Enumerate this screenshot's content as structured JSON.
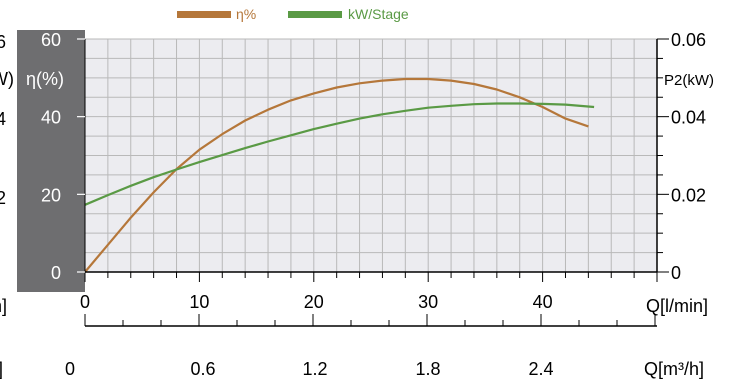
{
  "colors": {
    "efficiency": "#b5773a",
    "power": "#5a9a45",
    "grid": "#b9b9b9",
    "plot_bg": "#ececf0",
    "side_bar": "#6e6e70"
  },
  "chart_data": {
    "type": "line",
    "legend": {
      "placement": "top-center",
      "items": [
        {
          "label": "η%",
          "color": "#b5773a"
        },
        {
          "label": "kW/Stage",
          "color": "#5a9a45"
        }
      ]
    },
    "x_axis": {
      "label": "Q[l/min]",
      "range": [
        0,
        50
      ],
      "ticks": [
        0,
        10,
        20,
        30,
        40
      ],
      "tick_labels": [
        "0",
        "10",
        "20",
        "30",
        "40"
      ]
    },
    "x_axis_secondary": {
      "label": "Q[m³/h]",
      "tick_labels": [
        "0",
        "0.6",
        "1.2",
        "1.8",
        "2.4"
      ]
    },
    "y_axis_left": {
      "label": "η(%)",
      "range": [
        0,
        60
      ],
      "ticks": [
        0,
        20,
        40,
        60
      ],
      "tick_labels": [
        "0",
        "20",
        "40",
        "60"
      ]
    },
    "y_axis_right": {
      "label": "P2(kW)",
      "range": [
        0,
        0.06
      ],
      "ticks": [
        0,
        0.02,
        0.04,
        0.06
      ],
      "tick_labels": [
        "0",
        "0.02",
        "0.04",
        "0.06"
      ]
    },
    "clipped_left_text": {
      "ticks": [
        "6",
        "4",
        "2"
      ],
      "label_fragment": "kW)",
      "bottom_fragments": [
        "n]",
        "]"
      ]
    },
    "grid": true,
    "series": [
      {
        "name": "η%",
        "axis": "left",
        "x": [
          0,
          2,
          4,
          6,
          8,
          10,
          12,
          14,
          16,
          18,
          20,
          22,
          24,
          26,
          28,
          30,
          32,
          34,
          36,
          38,
          40,
          42,
          44
        ],
        "y": [
          0,
          7,
          14,
          20.5,
          26.5,
          31.5,
          35.5,
          39,
          41.8,
          44.2,
          46,
          47.5,
          48.6,
          49.3,
          49.7,
          49.7,
          49.3,
          48.4,
          47,
          45,
          42.5,
          39.5,
          37.5
        ]
      },
      {
        "name": "kW/Stage",
        "axis": "right",
        "x": [
          0,
          2,
          4,
          6,
          8,
          10,
          12,
          14,
          16,
          18,
          20,
          22,
          24,
          26,
          28,
          30,
          32,
          34,
          36,
          38,
          40,
          42,
          44.5
        ],
        "y": [
          0.0173,
          0.0198,
          0.0222,
          0.0244,
          0.0264,
          0.0283,
          0.0301,
          0.0319,
          0.0336,
          0.0352,
          0.0368,
          0.0382,
          0.0395,
          0.0406,
          0.0415,
          0.0423,
          0.0428,
          0.0432,
          0.0434,
          0.0434,
          0.0433,
          0.0431,
          0.0425
        ]
      }
    ]
  }
}
